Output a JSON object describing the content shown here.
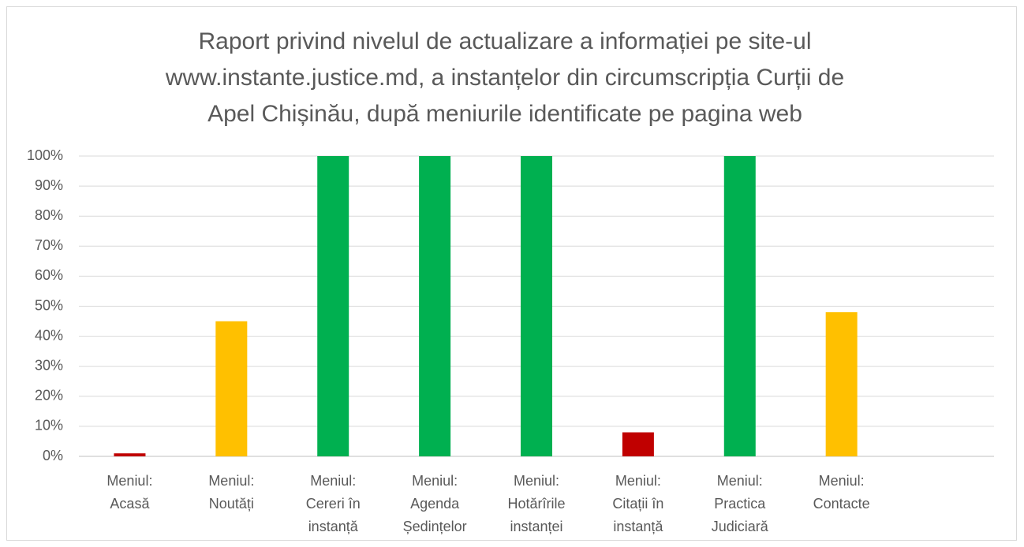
{
  "chart_data": {
    "type": "bar",
    "title": "Raport privind nivelul de actualizare a informației pe site-ul\nwww.instante.justice.md, a instanțelor din circumscripția Curții de\nApel Chișinău, după meniurile identificate pe pagina web",
    "categories": [
      "Meniul:\nAcasă",
      "Meniul:\nNoutăți",
      "Meniul:\nCereri în\ninstanță",
      "Meniul:\nAgenda\nȘedințelor",
      "Meniul:\nHotărîrile\ninstanței",
      "Meniul:\nCitații în\ninstanță",
      "Meniul:\nPractica\nJudiciară",
      "Meniul:\nContacte",
      null
    ],
    "values": [
      1,
      45,
      100,
      100,
      100,
      8,
      100,
      48,
      null
    ],
    "colors": [
      "#c00000",
      "#ffc000",
      "#00b050",
      "#00b050",
      "#00b050",
      "#c00000",
      "#00b050",
      "#ffc000",
      null
    ],
    "ylim": [
      0,
      100
    ],
    "yticks": [
      {
        "value": 0,
        "label": "0%"
      },
      {
        "value": 10,
        "label": "10%"
      },
      {
        "value": 20,
        "label": "20%"
      },
      {
        "value": 30,
        "label": "30%"
      },
      {
        "value": 40,
        "label": "40%"
      },
      {
        "value": 50,
        "label": "50%"
      },
      {
        "value": 60,
        "label": "60%"
      },
      {
        "value": 70,
        "label": "70%"
      },
      {
        "value": 80,
        "label": "80%"
      },
      {
        "value": 90,
        "label": "90%"
      },
      {
        "value": 100,
        "label": "100%"
      }
    ],
    "grid": true
  }
}
